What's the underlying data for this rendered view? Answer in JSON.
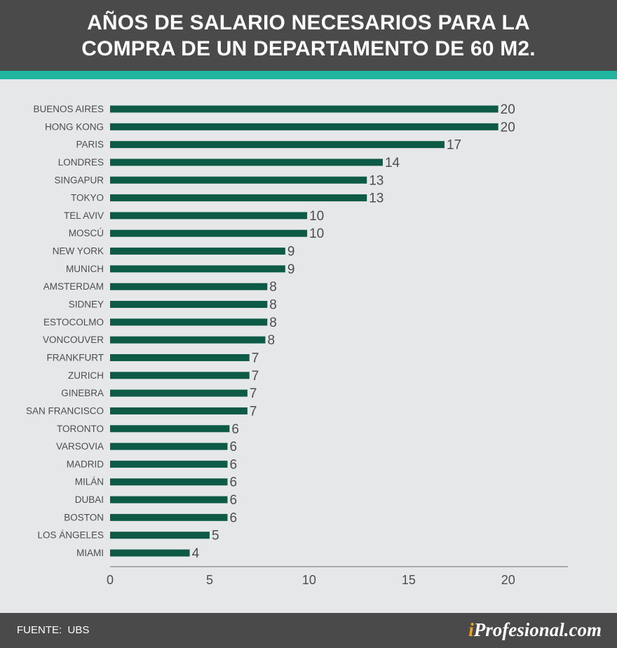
{
  "header": {
    "title_line1": "AÑOS DE SALARIO NECESARIOS PARA LA",
    "title_line2": "COMPRA DE UN DEPARTAMENTO DE 60 M2."
  },
  "footer": {
    "source_label": "FUENTE:",
    "source_value": "UBS",
    "brand_prefix": "i",
    "brand_rest": "Profesional.com"
  },
  "colors": {
    "header_bg": "#4a4a4a",
    "accent": "#1fb59f",
    "background": "#e6e7e9",
    "bar": "#0d5a46",
    "text": "#4d4d4d",
    "brand_accent": "#f0a51e"
  },
  "chart_data": {
    "type": "bar",
    "orientation": "horizontal",
    "title": "AÑOS DE SALARIO NECESARIOS PARA LA COMPRA DE UN DEPARTAMENTO DE 60 M2.",
    "xlabel": "",
    "ylabel": "",
    "xlim": [
      0,
      23
    ],
    "x_ticks": [
      0,
      5,
      10,
      15,
      20
    ],
    "grid": false,
    "legend": "none",
    "categories": [
      "BUENOS AIRES",
      "HONG KONG",
      "PARIS",
      "LONDRES",
      "SINGAPUR",
      "TOKYO",
      "TEL AVIV",
      "MOSCÚ",
      "NEW YORK",
      "MUNICH",
      "AMSTERDAM",
      "SIDNEY",
      "ESTOCOLMO",
      "VONCOUVER",
      "FRANKFURT",
      "ZURICH",
      "GINEBRA",
      "SAN FRANCISCO",
      "TORONTO",
      "VARSOVIA",
      "MADRID",
      "MILÁN",
      "DUBAI",
      "BOSTON",
      "LOS ÁNGELES",
      "MIAMI"
    ],
    "values": [
      19.5,
      19.5,
      16.8,
      13.7,
      12.9,
      12.9,
      9.9,
      9.9,
      8.8,
      8.8,
      7.9,
      7.9,
      7.9,
      7.8,
      7.0,
      7.0,
      6.9,
      6.9,
      6.0,
      5.9,
      5.9,
      5.9,
      5.9,
      5.9,
      5.0,
      4.0
    ],
    "data_labels": [
      "20",
      "20",
      "17",
      "14",
      "13",
      "13",
      "10",
      "10",
      "9",
      "9",
      "8",
      "8",
      "8",
      "8",
      "7",
      "7",
      "7",
      "7",
      "6",
      "6",
      "6",
      "6",
      "6",
      "6",
      "5",
      "4"
    ]
  }
}
